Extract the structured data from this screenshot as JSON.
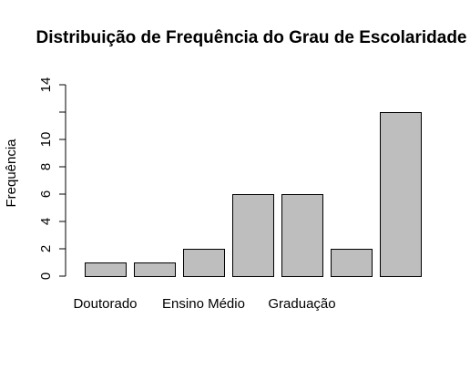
{
  "chart_data": {
    "type": "bar",
    "title": "Distribuição de Frequência do Grau de Escolaridade",
    "xlabel": "",
    "ylabel": "Frequência",
    "ylim": [
      0,
      14
    ],
    "yticks": [
      0,
      2,
      4,
      6,
      8,
      10,
      14
    ],
    "categories": [
      "Doutorado",
      "",
      "Ensino Médio",
      "",
      "Graduação",
      "",
      ""
    ],
    "values": [
      1,
      1,
      2,
      6,
      6,
      2,
      12
    ],
    "bar_color": "#bebebe",
    "grid": false,
    "legend": "none"
  }
}
